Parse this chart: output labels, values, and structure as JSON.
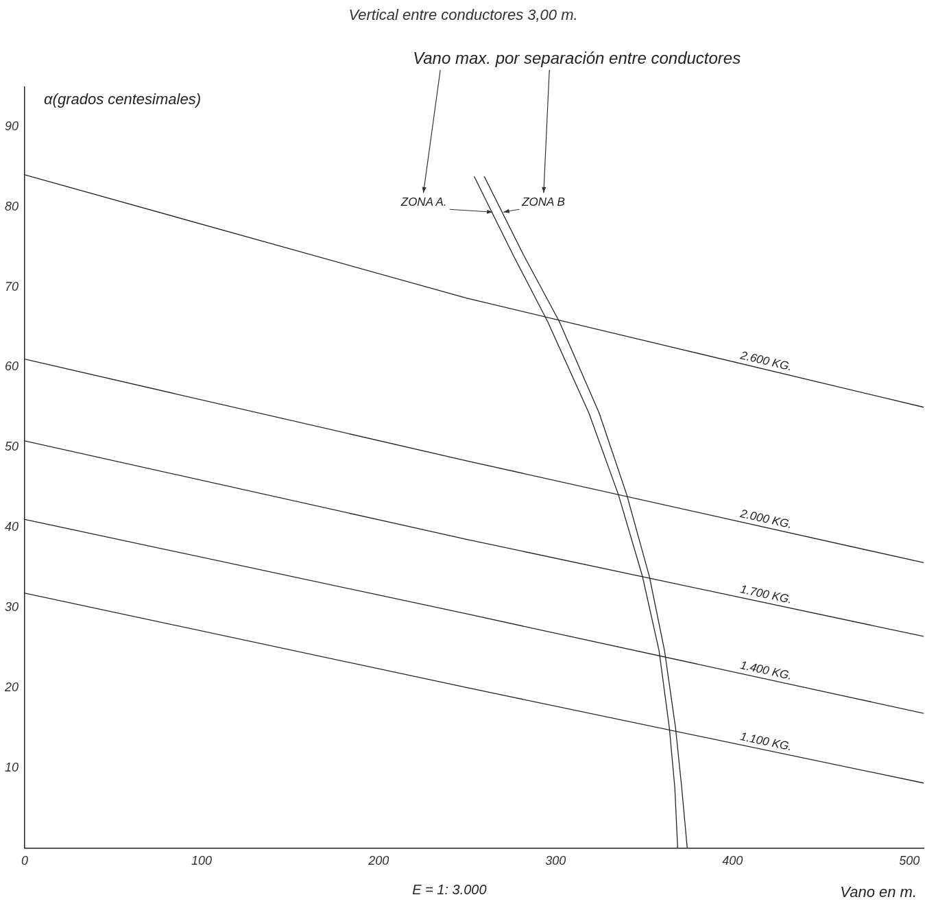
{
  "chart_data": {
    "type": "line",
    "title": "Vertical entre conductores 3,00 m.",
    "xlabel": "Vano en m.",
    "ylabel": "α(grados centesimales)",
    "annotations": [
      "Vano max. por separación entre conductores",
      "E = 1: 3.000"
    ],
    "x": [
      0,
      250,
      508
    ],
    "xlim": [
      0,
      508
    ],
    "xticks": [
      0,
      100,
      200,
      300,
      400,
      500
    ],
    "ylim": [
      0,
      95
    ],
    "yticks": [
      10,
      20,
      30,
      40,
      50,
      60,
      70,
      80,
      90
    ],
    "grid": false,
    "legend": false,
    "marker": "none",
    "line_style": "solid",
    "series": [
      {
        "name": "2.600 KG.",
        "color": "#222222",
        "values": [
          84,
          68.6,
          55
        ]
      },
      {
        "name": "2.000 KG.",
        "color": "#222222",
        "values": [
          61,
          48.3,
          35.6
        ]
      },
      {
        "name": "1.700 KG.",
        "color": "#222222",
        "values": [
          50.8,
          38.5,
          26.4
        ]
      },
      {
        "name": "1.400 KG.",
        "color": "#222222",
        "values": [
          41,
          29.2,
          16.8
        ]
      },
      {
        "name": "1.100 KG.",
        "color": "#222222",
        "values": [
          31.8,
          20,
          8.1
        ]
      },
      {
        "name": "ZONA A.",
        "color": "#222222",
        "x": [
          254,
          276,
          295.5,
          318.8,
          335.5,
          349.1,
          358.5,
          364.3,
          367.4,
          369
        ],
        "values": [
          83.8,
          74,
          65.7,
          54.3,
          44.1,
          33.9,
          24.6,
          15,
          7.5,
          0
        ]
      },
      {
        "name": "ZONA B",
        "color": "#222222",
        "x": [
          259.7,
          281.9,
          302.1,
          324.6,
          340.2,
          353,
          361.6,
          367.8,
          371.3,
          374.4
        ],
        "values": [
          83.8,
          74,
          65.7,
          54.3,
          44.1,
          33.9,
          24.6,
          15,
          7.5,
          0
        ]
      }
    ]
  }
}
